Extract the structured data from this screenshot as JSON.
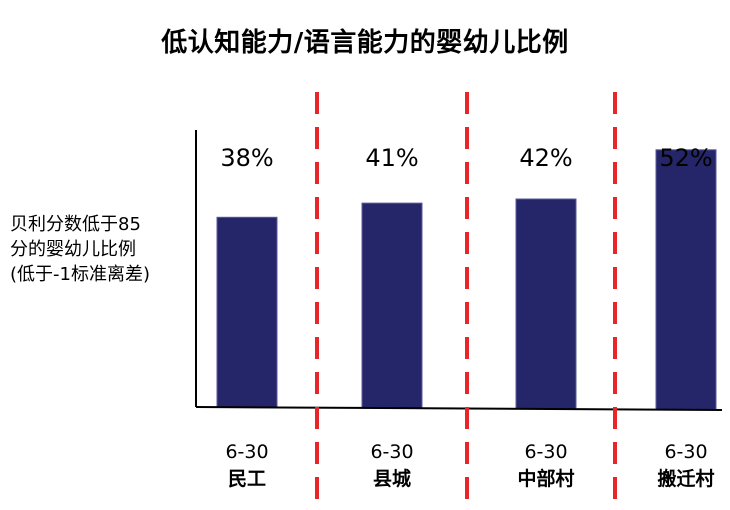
{
  "chart_data": {
    "type": "bar",
    "title": "低认知能力/语言能力的婴幼儿比例",
    "ylabel_lines": [
      "贝利分数低于85",
      "分的婴幼儿比例",
      "(低于-1标准离差)"
    ],
    "categories": [
      {
        "age": "6-30",
        "group": "民工"
      },
      {
        "age": "6-30",
        "group": "县城"
      },
      {
        "age": "6-30",
        "group": "中部村"
      },
      {
        "age": "6-30",
        "group": "搬迁村"
      }
    ],
    "values": [
      38,
      41,
      42,
      52
    ],
    "value_labels": [
      "38%",
      "41%",
      "42%",
      "52%"
    ],
    "grid": false,
    "legend": "none",
    "colors": {
      "bar": "#25256a",
      "divider": "#e8262a",
      "axis": "#000000"
    }
  }
}
